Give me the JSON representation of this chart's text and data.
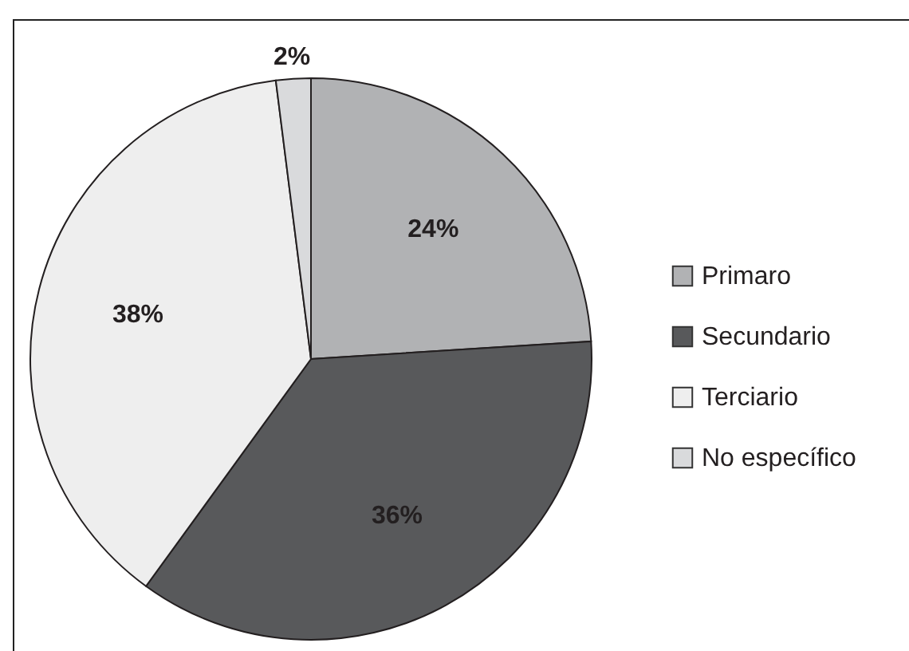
{
  "chart_data": {
    "type": "pie",
    "categories": [
      "Primaro",
      "Secundario",
      "Terciario",
      "No específico"
    ],
    "values": [
      24,
      36,
      38,
      2
    ],
    "colors": [
      "#b1b2b4",
      "#58595b",
      "#eeeeee",
      "#d9dadc"
    ],
    "value_labels": [
      "24%",
      "36%",
      "38%",
      "2%"
    ],
    "legend": "right"
  }
}
